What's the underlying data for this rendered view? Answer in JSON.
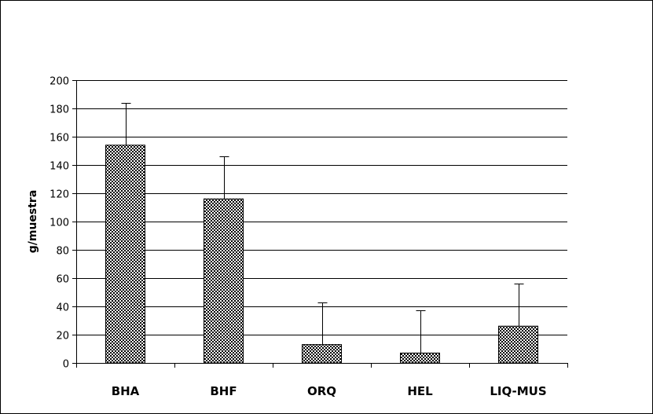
{
  "chart_data": {
    "type": "bar",
    "title": "",
    "xlabel": "",
    "ylabel": "g/muestra",
    "categories": [
      "BHA",
      "BHF",
      "ORQ",
      "HEL",
      "LIQ-MUS"
    ],
    "values": [
      154,
      116,
      13,
      7,
      26
    ],
    "error_upper": [
      184,
      146,
      43,
      37,
      56
    ],
    "ylim": [
      0,
      200
    ],
    "yticks": [
      0,
      20,
      40,
      60,
      80,
      100,
      120,
      140,
      160,
      180,
      200
    ],
    "grid": true,
    "legend": "none",
    "bar_fill": "checkerboard"
  }
}
